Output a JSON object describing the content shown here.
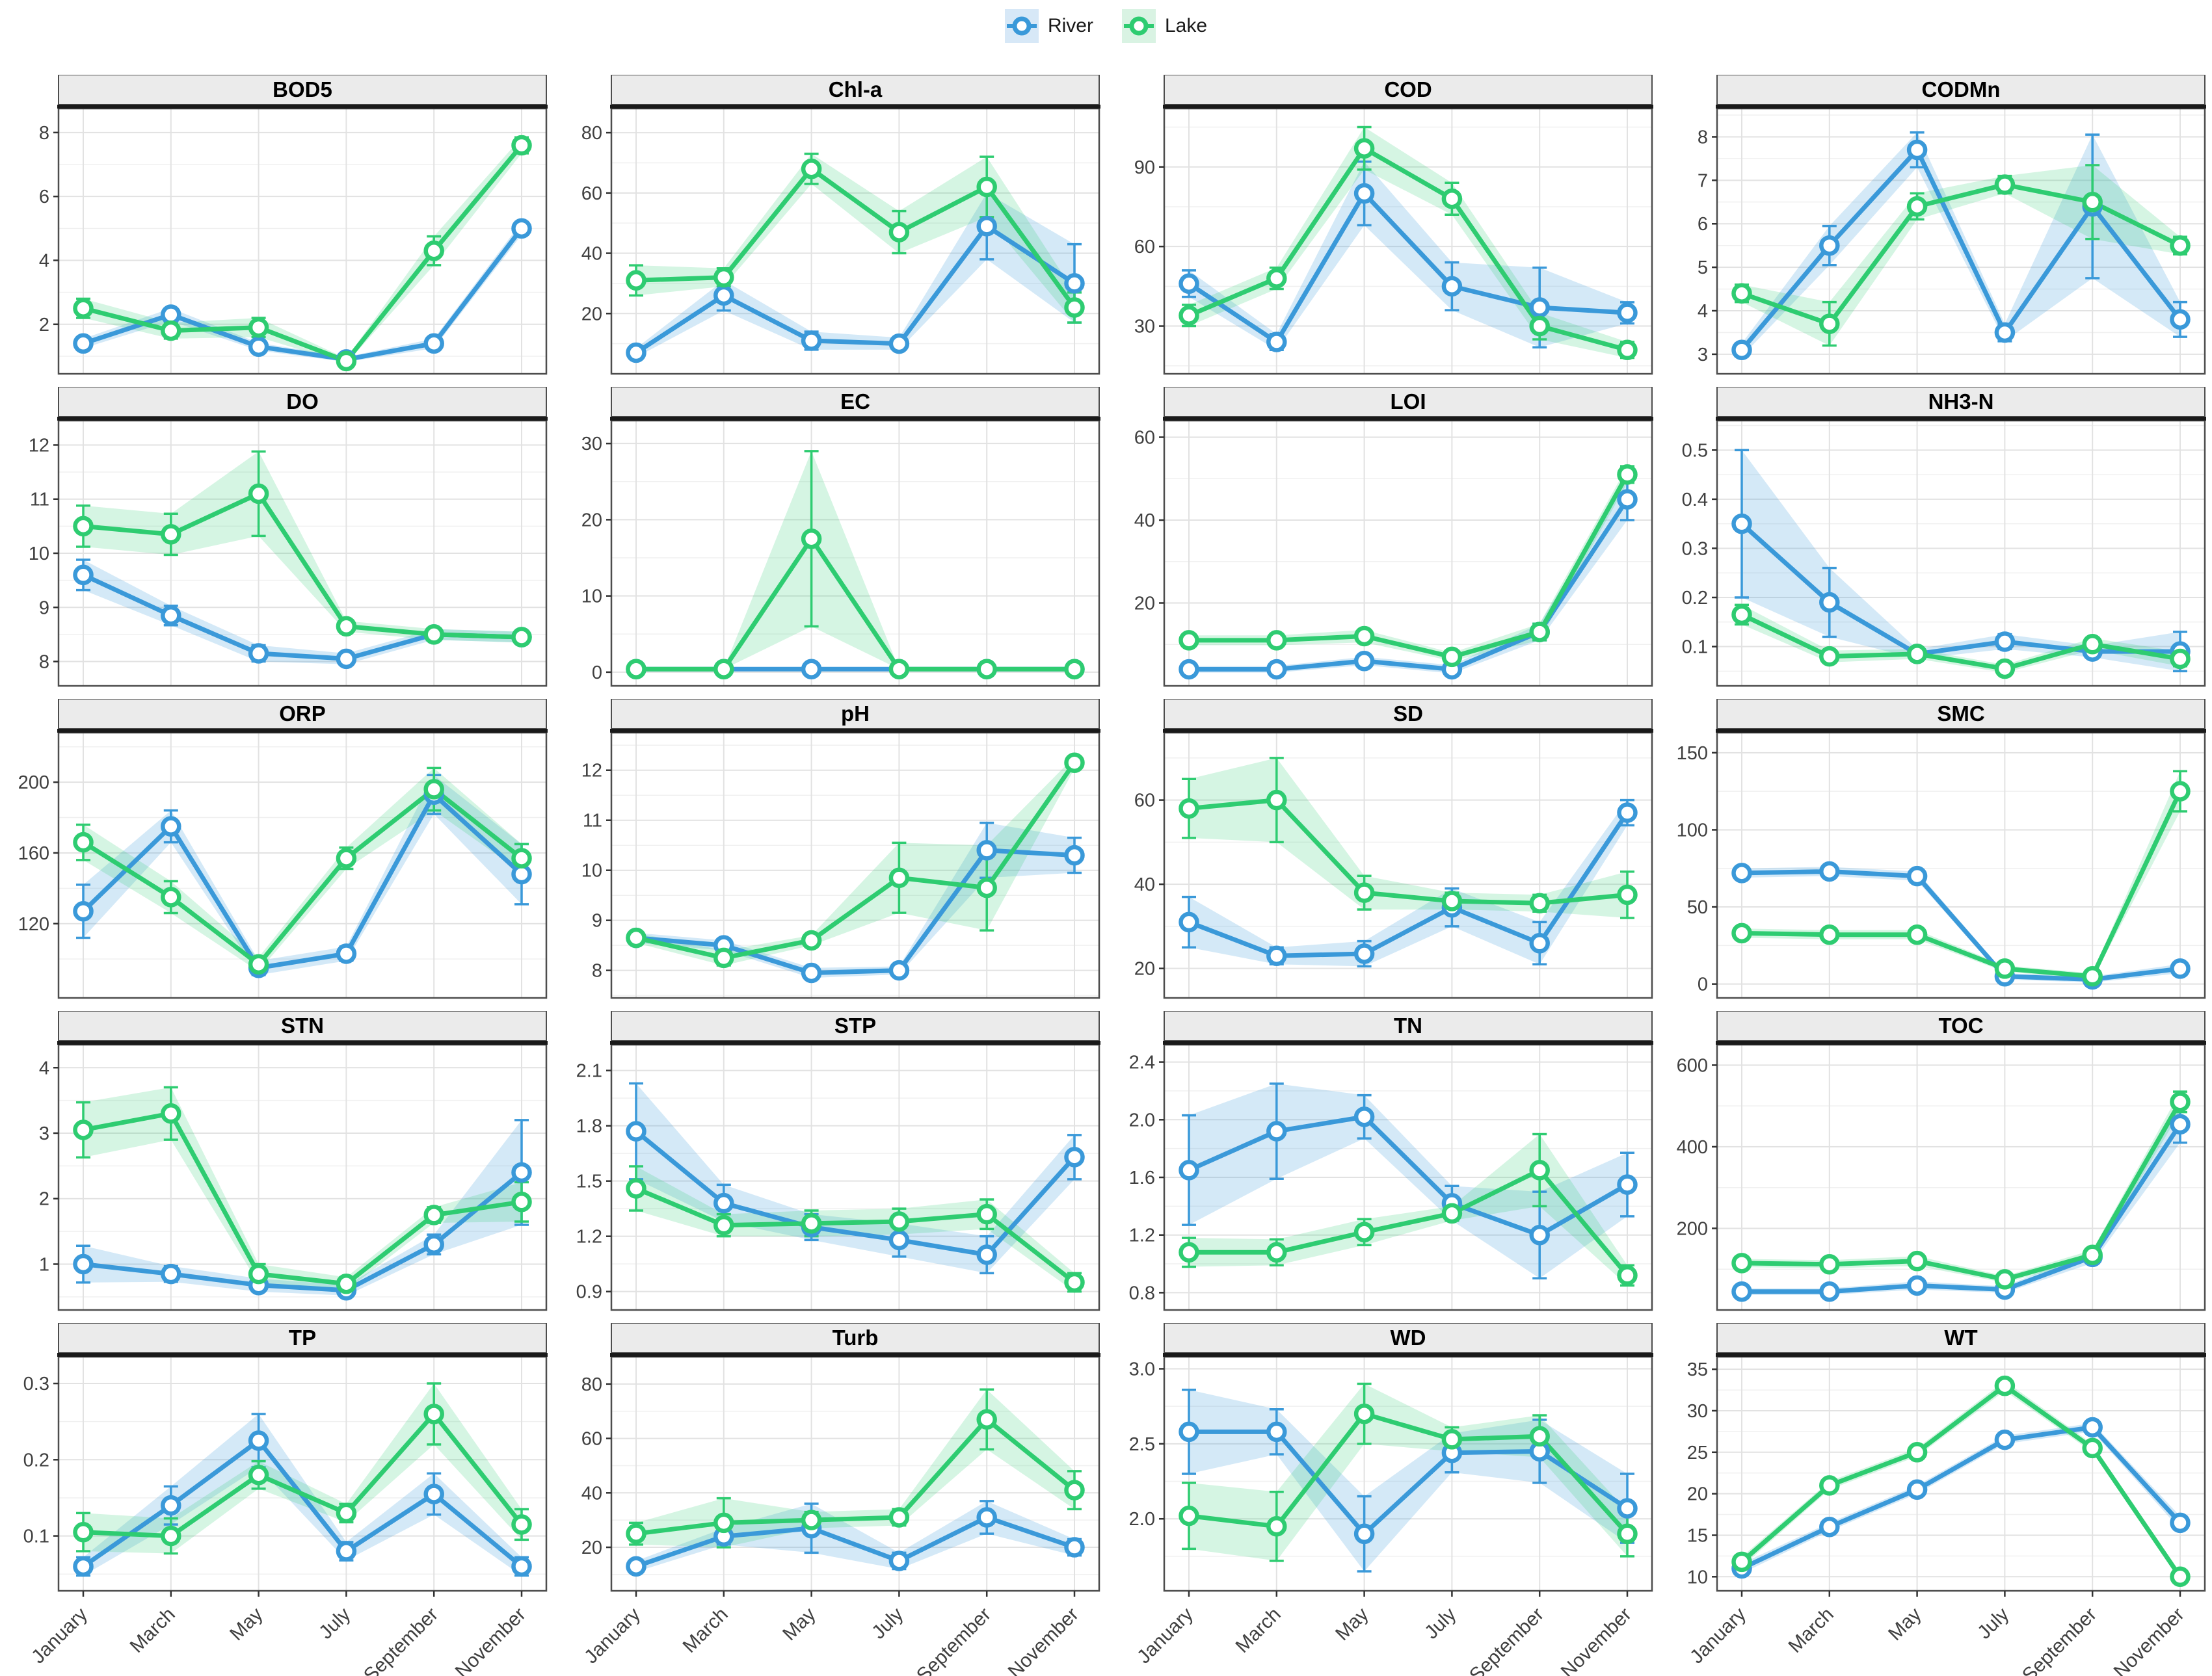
{
  "legend": {
    "position": "top",
    "items": [
      {
        "label": "River",
        "color": "#3a99d9",
        "key_fill": "#d7e8f7"
      },
      {
        "label": "Lake",
        "color": "#2ecc71",
        "key_fill": "#d9f3e3"
      }
    ]
  },
  "colors": {
    "river": "#3a99d9",
    "lake": "#2ecc71",
    "river_ribbon": "rgba(58,153,217,0.22)",
    "lake_ribbon": "rgba(46,204,113,0.20)",
    "strip_bg": "#ebebeb",
    "strip_border": "#4d4d4d",
    "strip_underline": "#1a1a1a",
    "panel_border": "#4d4d4d",
    "grid_major": "#e2e2e2",
    "grid_minor": "#f0f0f0",
    "axis_text": "#404040",
    "tick_mark": "#333333"
  },
  "chart_data": {
    "type": "line",
    "facets": true,
    "legend_entries": [
      "River",
      "Lake"
    ],
    "x_categories": [
      "January",
      "March",
      "May",
      "July",
      "September",
      "November"
    ],
    "panels": [
      {
        "title": "BOD5",
        "ylim": [
          0.45,
          8.75
        ],
        "yticks": [
          "2",
          "4",
          "6",
          "8"
        ],
        "series": [
          {
            "name": "River",
            "values": [
              1.4,
              2.3,
              1.3,
              0.9,
              1.4,
              5.0
            ],
            "err": [
              0.15,
              0.2,
              0.12,
              0.08,
              0.15,
              0.2
            ]
          },
          {
            "name": "Lake",
            "values": [
              2.5,
              1.8,
              1.9,
              0.85,
              4.3,
              7.6
            ],
            "err": [
              0.3,
              0.25,
              0.3,
              0.08,
              0.45,
              0.25
            ]
          }
        ]
      },
      {
        "title": "Chl-a",
        "ylim": [
          0,
          88
        ],
        "yticks": [
          "20",
          "40",
          "60",
          "80"
        ],
        "series": [
          {
            "name": "River",
            "values": [
              7,
              26,
              11,
              10,
              49,
              30
            ],
            "err": [
              1.5,
              5,
              3,
              2,
              11,
              13
            ]
          },
          {
            "name": "Lake",
            "values": [
              31,
              32,
              68,
              47,
              62,
              22
            ],
            "err": [
              5,
              3,
              5,
              7,
              10,
              5
            ]
          }
        ]
      },
      {
        "title": "COD",
        "ylim": [
          12,
          112
        ],
        "yticks": [
          "30",
          "60",
          "90"
        ],
        "series": [
          {
            "name": "River",
            "values": [
              46,
              24,
              80,
              45,
              37,
              35
            ],
            "err": [
              5,
              3,
              12,
              9,
              15,
              4
            ]
          },
          {
            "name": "Lake",
            "values": [
              34,
              48,
              97,
              78,
              30,
              21
            ],
            "err": [
              4,
              4,
              8,
              6,
              5,
              3
            ]
          }
        ]
      },
      {
        "title": "CODMn",
        "ylim": [
          2.55,
          8.65
        ],
        "yticks": [
          "3",
          "4",
          "5",
          "6",
          "7",
          "8"
        ],
        "series": [
          {
            "name": "River",
            "values": [
              3.1,
              5.5,
              7.7,
              3.5,
              6.4,
              3.8
            ],
            "err": [
              0.15,
              0.45,
              0.4,
              0.2,
              1.65,
              0.4
            ]
          },
          {
            "name": "Lake",
            "values": [
              4.4,
              3.7,
              6.4,
              6.9,
              6.5,
              5.5
            ],
            "err": [
              0.2,
              0.5,
              0.3,
              0.2,
              0.85,
              0.2
            ]
          }
        ]
      },
      {
        "title": "DO",
        "ylim": [
          7.55,
          12.45
        ],
        "yticks": [
          "8",
          "9",
          "10",
          "11",
          "12"
        ],
        "series": [
          {
            "name": "River",
            "values": [
              9.6,
              8.85,
              8.15,
              8.05,
              8.5,
              8.45
            ],
            "err": [
              0.28,
              0.18,
              0.15,
              0.1,
              0.1,
              0.1
            ]
          },
          {
            "name": "Lake",
            "values": [
              10.5,
              10.35,
              11.1,
              8.65,
              8.5,
              8.45
            ],
            "err": [
              0.38,
              0.38,
              0.78,
              0.1,
              0.1,
              0.1
            ]
          }
        ]
      },
      {
        "title": "EC",
        "ylim": [
          -1.8,
          33
        ],
        "yticks": [
          "0",
          "10",
          "20",
          "30"
        ],
        "series": [
          {
            "name": "River",
            "values": [
              0.4,
              0.4,
              0.4,
              0.4,
              0.4,
              0.4
            ],
            "err": [
              0,
              0,
              0,
              0,
              0,
              0
            ]
          },
          {
            "name": "Lake",
            "values": [
              0.4,
              0.4,
              17.5,
              0.4,
              0.4,
              0.4
            ],
            "err": [
              0,
              0,
              11.5,
              0,
              0,
              0
            ]
          }
        ]
      },
      {
        "title": "LOI",
        "ylim": [
          0,
          64
        ],
        "yticks": [
          "20",
          "40",
          "60"
        ],
        "series": [
          {
            "name": "River",
            "values": [
              4,
              4,
              6,
              4,
              13,
              45
            ],
            "err": [
              0.8,
              0.8,
              1,
              1,
              2,
              5
            ]
          },
          {
            "name": "Lake",
            "values": [
              11,
              11,
              12,
              7,
              13,
              51
            ],
            "err": [
              1.2,
              1.2,
              1.5,
              1,
              2,
              2
            ]
          }
        ]
      },
      {
        "title": "NH3-N",
        "ylim": [
          0.02,
          0.56
        ],
        "yticks": [
          "0.1",
          "0.2",
          "0.3",
          "0.4",
          "0.5"
        ],
        "series": [
          {
            "name": "River",
            "values": [
              0.35,
              0.19,
              0.085,
              0.11,
              0.09,
              0.09
            ],
            "err": [
              0.15,
              0.07,
              0.01,
              0.015,
              0.012,
              0.04
            ]
          },
          {
            "name": "Lake",
            "values": [
              0.165,
              0.08,
              0.085,
              0.055,
              0.105,
              0.075
            ],
            "err": [
              0.02,
              0.012,
              0.01,
              0.008,
              0.012,
              0.015
            ]
          }
        ]
      },
      {
        "title": "ORP",
        "ylim": [
          78,
          228
        ],
        "yticks": [
          "120",
          "160",
          "200"
        ],
        "series": [
          {
            "name": "River",
            "values": [
              127,
              175,
              95,
              103,
              193,
              148
            ],
            "err": [
              15,
              9,
              4,
              4,
              11,
              17
            ]
          },
          {
            "name": "Lake",
            "values": [
              166,
              135,
              97,
              157,
              196,
              157
            ],
            "err": [
              10,
              9,
              4,
              6,
              12,
              8
            ]
          }
        ]
      },
      {
        "title": "pH",
        "ylim": [
          7.45,
          12.75
        ],
        "yticks": [
          "8",
          "9",
          "10",
          "11",
          "12"
        ],
        "series": [
          {
            "name": "River",
            "values": [
              8.65,
              8.5,
              7.95,
              8.0,
              10.4,
              10.3
            ],
            "err": [
              0.1,
              0.1,
              0.1,
              0.08,
              0.55,
              0.35
            ]
          },
          {
            "name": "Lake",
            "values": [
              8.65,
              8.25,
              8.6,
              9.85,
              9.65,
              12.15
            ],
            "err": [
              0.1,
              0.15,
              0.1,
              0.7,
              0.85,
              0.12
            ]
          }
        ]
      },
      {
        "title": "SD",
        "ylim": [
          13,
          76
        ],
        "yticks": [
          "20",
          "40",
          "60"
        ],
        "series": [
          {
            "name": "River",
            "values": [
              31,
              23,
              23.5,
              34.5,
              26,
              57
            ],
            "err": [
              6,
              2,
              3,
              4.5,
              5,
              3
            ]
          },
          {
            "name": "Lake",
            "values": [
              58,
              60,
              38,
              36,
              35.5,
              37.5
            ],
            "err": [
              7,
              10,
              4,
              2,
              2,
              5.5
            ]
          }
        ]
      },
      {
        "title": "SMC",
        "ylim": [
          -9,
          163
        ],
        "yticks": [
          "0",
          "50",
          "100",
          "150"
        ],
        "series": [
          {
            "name": "River",
            "values": [
              72,
              73,
              70,
              5,
              3,
              10
            ],
            "err": [
              3,
              3,
              3,
              2,
              2,
              3
            ]
          },
          {
            "name": "Lake",
            "values": [
              33,
              32,
              32,
              10,
              5,
              125
            ],
            "err": [
              3,
              3,
              3,
              2,
              2,
              13
            ]
          }
        ]
      },
      {
        "title": "STN",
        "ylim": [
          0.3,
          4.35
        ],
        "yticks": [
          "1",
          "2",
          "3",
          "4"
        ],
        "series": [
          {
            "name": "River",
            "values": [
              1.0,
              0.85,
              0.68,
              0.6,
              1.3,
              2.4
            ],
            "err": [
              0.28,
              0.12,
              0.1,
              0.08,
              0.15,
              0.8
            ]
          },
          {
            "name": "Lake",
            "values": [
              3.05,
              3.3,
              0.85,
              0.7,
              1.75,
              1.95
            ],
            "err": [
              0.42,
              0.4,
              0.15,
              0.1,
              0.12,
              0.3
            ]
          }
        ]
      },
      {
        "title": "STP",
        "ylim": [
          0.8,
          2.24
        ],
        "yticks": [
          "0.9",
          "1.2",
          "1.5",
          "1.8",
          "2.1"
        ],
        "series": [
          {
            "name": "River",
            "values": [
              1.77,
              1.38,
              1.25,
              1.18,
              1.1,
              1.63
            ],
            "err": [
              0.26,
              0.1,
              0.07,
              0.09,
              0.1,
              0.12
            ]
          },
          {
            "name": "Lake",
            "values": [
              1.46,
              1.26,
              1.27,
              1.28,
              1.32,
              0.95
            ],
            "err": [
              0.12,
              0.06,
              0.07,
              0.07,
              0.08,
              0.05
            ]
          }
        ]
      },
      {
        "title": "TN",
        "ylim": [
          0.68,
          2.52
        ],
        "yticks": [
          "0.8",
          "1.2",
          "1.6",
          "2.0",
          "2.4"
        ],
        "series": [
          {
            "name": "River",
            "values": [
              1.65,
              1.92,
              2.02,
              1.42,
              1.2,
              1.55
            ],
            "err": [
              0.38,
              0.33,
              0.15,
              0.12,
              0.3,
              0.22
            ]
          },
          {
            "name": "Lake",
            "values": [
              1.08,
              1.08,
              1.22,
              1.35,
              1.65,
              0.92
            ],
            "err": [
              0.1,
              0.09,
              0.09,
              0.05,
              0.25,
              0.07
            ]
          }
        ]
      },
      {
        "title": "TOC",
        "ylim": [
          0,
          650
        ],
        "yticks": [
          "200",
          "400",
          "600"
        ],
        "series": [
          {
            "name": "River",
            "values": [
              45,
              45,
              60,
              50,
              130,
              455
            ],
            "err": [
              8,
              8,
              10,
              8,
              15,
              45
            ]
          },
          {
            "name": "Lake",
            "values": [
              115,
              112,
              120,
              75,
              135,
              510
            ],
            "err": [
              10,
              10,
              12,
              8,
              12,
              25
            ]
          }
        ]
      },
      {
        "title": "TP",
        "ylim": [
          0.028,
          0.335
        ],
        "yticks": [
          "0.1",
          "0.2",
          "0.3"
        ],
        "series": [
          {
            "name": "River",
            "values": [
              0.06,
              0.14,
              0.225,
              0.08,
              0.155,
              0.06
            ],
            "err": [
              0.012,
              0.025,
              0.035,
              0.012,
              0.027,
              0.012
            ]
          },
          {
            "name": "Lake",
            "values": [
              0.105,
              0.1,
              0.18,
              0.13,
              0.26,
              0.115
            ],
            "err": [
              0.025,
              0.023,
              0.018,
              0.012,
              0.04,
              0.02
            ]
          }
        ]
      },
      {
        "title": "Turb",
        "ylim": [
          4,
          90
        ],
        "yticks": [
          "20",
          "40",
          "60",
          "80"
        ],
        "series": [
          {
            "name": "River",
            "values": [
              13,
              24,
              27,
              15,
              31,
              20
            ],
            "err": [
              2,
              3,
              9,
              3,
              6,
              3
            ]
          },
          {
            "name": "Lake",
            "values": [
              25,
              29,
              30,
              31,
              67,
              41
            ],
            "err": [
              4,
              9,
              3,
              3,
              11,
              7
            ]
          }
        ]
      },
      {
        "title": "WD",
        "ylim": [
          1.52,
          3.08
        ],
        "yticks": [
          "2.0",
          "2.5",
          "3.0"
        ],
        "series": [
          {
            "name": "River",
            "values": [
              2.58,
              2.58,
              1.9,
              2.44,
              2.45,
              2.07
            ],
            "err": [
              0.28,
              0.15,
              0.25,
              0.13,
              0.21,
              0.23
            ]
          },
          {
            "name": "Lake",
            "values": [
              2.02,
              1.95,
              2.7,
              2.53,
              2.55,
              1.9
            ],
            "err": [
              0.22,
              0.23,
              0.2,
              0.08,
              0.14,
              0.15
            ]
          }
        ]
      },
      {
        "title": "WT",
        "ylim": [
          8.3,
          36.5
        ],
        "yticks": [
          "10",
          "15",
          "20",
          "25",
          "30",
          "35"
        ],
        "series": [
          {
            "name": "River",
            "values": [
              11,
              16,
              20.5,
              26.5,
              28,
              16.5
            ],
            "err": [
              0.6,
              0.5,
              0.5,
              0.5,
              0.5,
              0.8
            ]
          },
          {
            "name": "Lake",
            "values": [
              11.8,
              21,
              25,
              33,
              25.5,
              10
            ],
            "err": [
              0.6,
              0.5,
              0.5,
              0.6,
              0.5,
              0.5
            ]
          }
        ]
      }
    ]
  }
}
